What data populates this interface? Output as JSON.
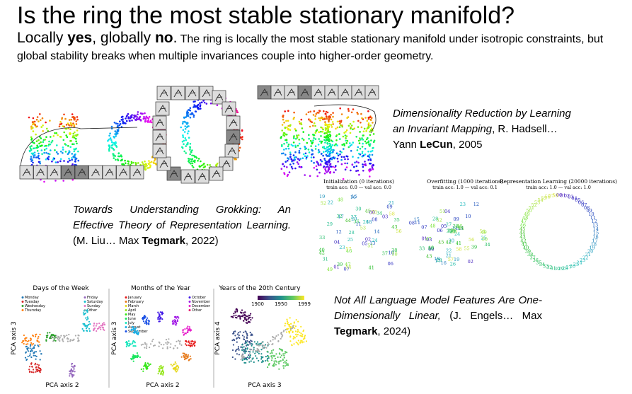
{
  "title": "Is the ring the most stable stationary manifold?",
  "subtitle": {
    "w1": "Locally ",
    "w2": "yes",
    "w3": ", globally ",
    "w4": "no",
    "w5": ".",
    "rest": " The ring is locally the most stable stationary manifold under isotropic constraints, but global stability breaks when multiple invariances couple into higher-order geometry."
  },
  "citations": {
    "hadsell": {
      "title": "Dimensionality Reduction by Learning an Invariant Mapping",
      "authors": ", R. Hadsell… Yann ",
      "bold": "LeCun",
      "year": ", 2005"
    },
    "liu": {
      "title": "Towards Understanding Grokking: An Effective Theory of Representation Learning.",
      "authors": " (M. Liu… Max ",
      "bold": "Tegmark",
      "year": ", 2022)"
    },
    "engels": {
      "title": "Not All Language Model Features Are One-Dimensionally Linear,",
      "authors": " (J. Engels… Max ",
      "bold": "Tegmark",
      "year": ", 2024)"
    }
  },
  "grokking": {
    "panels": [
      {
        "title": "Initialization (0 iterations)",
        "sub": "train acc: 0.0 — val acc: 0.0"
      },
      {
        "title": "Overfitting (1000 iterations)",
        "sub": "train acc: 1.0 — val acc: 0.1"
      },
      {
        "title": "Representation Learning (20000 iterations)",
        "sub": "train acc: 1.0 — val acc: 1.0"
      }
    ]
  },
  "pca": {
    "days": {
      "title": "Days of the Week",
      "xlabel": "PCA axis 2",
      "ylabel": "PCA axis 3",
      "legend": [
        "Monday",
        "Tuesday",
        "Wednesday",
        "Thursday",
        "Friday",
        "Saturday",
        "Sunday",
        "Other"
      ]
    },
    "months": {
      "title": "Months of the Year",
      "xlabel": "PCA axis 2",
      "ylabel": "PCA axis 3",
      "legend": [
        "January",
        "February",
        "March",
        "April",
        "May",
        "June",
        "July",
        "August",
        "September",
        "October",
        "November",
        "December",
        "Other"
      ]
    },
    "years": {
      "title": "Years of the 20th Century",
      "xlabel": "PCA axis 3",
      "ylabel": "PCA axis 4",
      "colorbar_ticks": [
        "1900",
        "1950",
        "1999"
      ]
    }
  },
  "colors": {
    "days": [
      "#1f77b4",
      "#d62728",
      "#2ca02c",
      "#ff7f0e",
      "#9467bd",
      "#17becf",
      "#e377c2",
      "#aaaaaa"
    ]
  }
}
